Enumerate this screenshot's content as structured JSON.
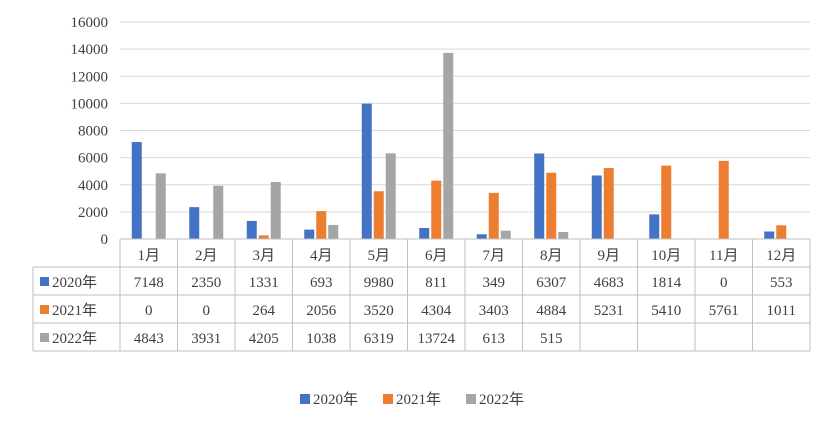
{
  "chart_data": {
    "type": "bar",
    "title": "",
    "xlabel": "",
    "ylabel": "",
    "ylim": [
      0,
      16000
    ],
    "yticks": [
      0,
      2000,
      4000,
      6000,
      8000,
      10000,
      12000,
      14000,
      16000
    ],
    "grid": "horizontal",
    "legend_placement": "bottom",
    "data_table": true,
    "categories": [
      "1月",
      "2月",
      "3月",
      "4月",
      "5月",
      "6月",
      "7月",
      "8月",
      "9月",
      "10月",
      "11月",
      "12月"
    ],
    "series": [
      {
        "name": "2020年",
        "color": "#4472C4",
        "values": [
          7148,
          2350,
          1331,
          693,
          9980,
          811,
          349,
          6307,
          4683,
          1814,
          0,
          553
        ]
      },
      {
        "name": "2021年",
        "color": "#ED7D31",
        "values": [
          0,
          0,
          264,
          2056,
          3520,
          4304,
          3403,
          4884,
          5231,
          5410,
          5761,
          1011
        ]
      },
      {
        "name": "2022年",
        "color": "#A5A5A5",
        "values": [
          4843,
          3931,
          4205,
          1038,
          6319,
          13724,
          613,
          515,
          null,
          null,
          null,
          null
        ]
      }
    ]
  }
}
